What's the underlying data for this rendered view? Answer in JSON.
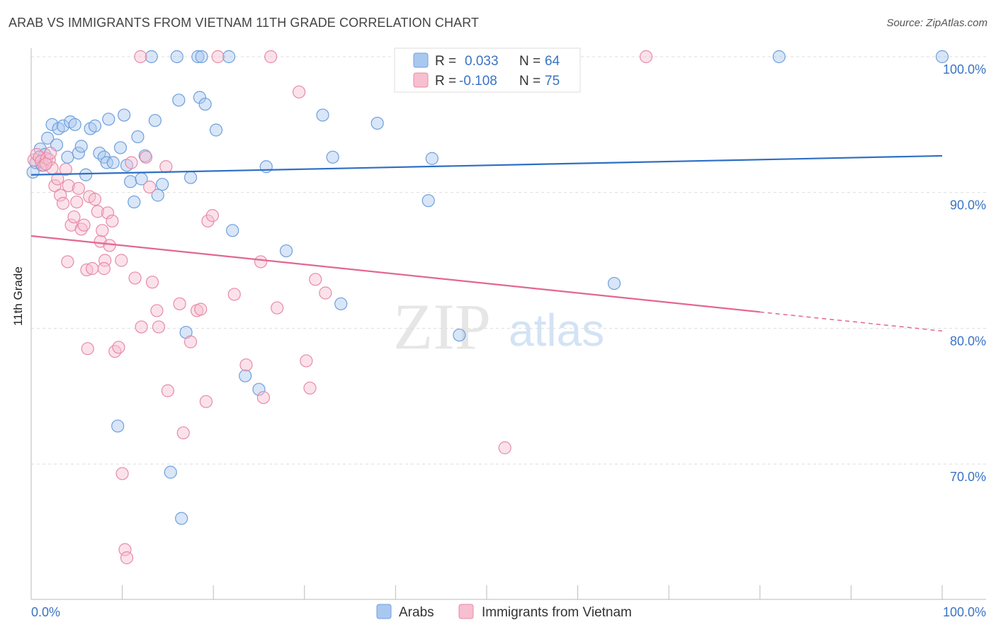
{
  "header": {
    "title": "ARAB VS IMMIGRANTS FROM VIETNAM 11TH GRADE CORRELATION CHART",
    "source": "Source: ZipAtlas.com"
  },
  "watermark": {
    "zip": "ZIP",
    "atlas": "atlas"
  },
  "legend_top": [
    {
      "r_label": "R =",
      "r_value": "0.033",
      "n_label": "N =",
      "n_value": "64"
    },
    {
      "r_label": "R =",
      "r_value": "-0.108",
      "n_label": "N =",
      "n_value": "75"
    }
  ],
  "legend_bottom": [
    "Arabs",
    "Immigrants from Vietnam"
  ],
  "colors": {
    "arab_fill": "#a9c8f0",
    "arab_stroke": "#6e9fdc",
    "arab_line": "#2e6fc4",
    "viet_fill": "#f7bfd0",
    "viet_stroke": "#e88aa8",
    "viet_line": "#e36694",
    "axis_text_blue": "#3a73c4",
    "grid": "#dddddd"
  },
  "chart_data": {
    "type": "scatter",
    "title": "ARAB VS IMMIGRANTS FROM VIETNAM 11TH GRADE CORRELATION CHART",
    "xlabel": "",
    "ylabel": "11th Grade",
    "xlim": [
      0,
      100
    ],
    "ylim": [
      61.5,
      101.5
    ],
    "x_tick_labels": [
      "0.0%",
      "100.0%"
    ],
    "y_ticks": [
      70,
      80,
      90,
      100
    ],
    "y_tick_labels": [
      "70.0%",
      "80.0%",
      "90.0%",
      "100.0%"
    ],
    "grid": true,
    "legend_position": "top-center",
    "series": [
      {
        "name": "Arabs",
        "R": 0.033,
        "N": 64,
        "trend": {
          "x": [
            0,
            100
          ],
          "y": [
            91.3,
            92.7
          ],
          "dashed_from": null
        },
        "points": [
          [
            0.2,
            91.5
          ],
          [
            0.5,
            92.2
          ],
          [
            1.0,
            93.2
          ],
          [
            1.5,
            92.8
          ],
          [
            1.8,
            94.0
          ],
          [
            2.3,
            95.0
          ],
          [
            2.8,
            93.5
          ],
          [
            3.0,
            94.7
          ],
          [
            3.5,
            94.9
          ],
          [
            4.0,
            92.6
          ],
          [
            4.3,
            95.2
          ],
          [
            4.8,
            95.0
          ],
          [
            5.2,
            92.9
          ],
          [
            5.5,
            93.4
          ],
          [
            6.0,
            91.3
          ],
          [
            6.5,
            94.7
          ],
          [
            7.0,
            94.9
          ],
          [
            7.5,
            92.9
          ],
          [
            8.0,
            92.6
          ],
          [
            8.3,
            92.2
          ],
          [
            8.5,
            95.4
          ],
          [
            9.0,
            92.2
          ],
          [
            9.8,
            93.3
          ],
          [
            10.2,
            95.7
          ],
          [
            10.5,
            92.0
          ],
          [
            10.9,
            90.8
          ],
          [
            11.3,
            89.3
          ],
          [
            11.7,
            94.1
          ],
          [
            12.1,
            91.0
          ],
          [
            12.5,
            92.7
          ],
          [
            13.2,
            100.0
          ],
          [
            13.6,
            95.3
          ],
          [
            13.9,
            89.8
          ],
          [
            14.4,
            90.6
          ],
          [
            16.0,
            100.0
          ],
          [
            16.2,
            96.8
          ],
          [
            17.0,
            79.7
          ],
          [
            17.5,
            91.1
          ],
          [
            18.3,
            100.0
          ],
          [
            18.5,
            97.0
          ],
          [
            18.7,
            100.0
          ],
          [
            19.1,
            96.5
          ],
          [
            20.3,
            94.6
          ],
          [
            21.7,
            100.0
          ],
          [
            22.1,
            87.2
          ],
          [
            23.5,
            76.5
          ],
          [
            25.8,
            91.9
          ],
          [
            28.0,
            85.7
          ],
          [
            32.0,
            95.7
          ],
          [
            33.1,
            92.6
          ],
          [
            34.0,
            81.8
          ],
          [
            38.0,
            95.1
          ],
          [
            43.6,
            89.4
          ],
          [
            44.0,
            92.5
          ],
          [
            47.0,
            79.5
          ],
          [
            59.5,
            100.0
          ],
          [
            64.0,
            83.3
          ],
          [
            82.1,
            100.0
          ],
          [
            100.0,
            100.0
          ],
          [
            25.0,
            75.5
          ],
          [
            9.5,
            72.8
          ],
          [
            15.3,
            69.4
          ],
          [
            16.5,
            66.0
          ],
          [
            1.2,
            92.0
          ]
        ]
      },
      {
        "name": "Immigrants from Vietnam",
        "R": -0.108,
        "N": 75,
        "trend": {
          "x": [
            0,
            100
          ],
          "y": [
            86.8,
            79.8
          ],
          "dashed_from": 80
        },
        "points": [
          [
            0.3,
            92.4
          ],
          [
            0.6,
            92.8
          ],
          [
            0.9,
            92.6
          ],
          [
            1.1,
            92.3
          ],
          [
            1.4,
            92.0
          ],
          [
            1.7,
            92.5
          ],
          [
            2.0,
            92.4
          ],
          [
            2.3,
            91.8
          ],
          [
            2.6,
            90.5
          ],
          [
            2.9,
            91.0
          ],
          [
            3.2,
            89.8
          ],
          [
            3.5,
            89.2
          ],
          [
            3.8,
            91.7
          ],
          [
            4.1,
            90.5
          ],
          [
            4.4,
            87.6
          ],
          [
            4.7,
            88.2
          ],
          [
            5.0,
            89.3
          ],
          [
            5.2,
            90.3
          ],
          [
            5.5,
            87.3
          ],
          [
            5.8,
            87.6
          ],
          [
            6.1,
            84.3
          ],
          [
            6.4,
            89.7
          ],
          [
            6.7,
            84.4
          ],
          [
            7.0,
            89.5
          ],
          [
            7.3,
            88.6
          ],
          [
            7.6,
            86.4
          ],
          [
            7.8,
            87.2
          ],
          [
            8.1,
            85.0
          ],
          [
            8.4,
            88.5
          ],
          [
            8.6,
            86.1
          ],
          [
            8.9,
            87.9
          ],
          [
            9.2,
            78.3
          ],
          [
            9.6,
            78.6
          ],
          [
            9.9,
            85.0
          ],
          [
            10.3,
            63.7
          ],
          [
            10.5,
            63.1
          ],
          [
            11.0,
            92.2
          ],
          [
            11.4,
            83.7
          ],
          [
            12.1,
            80.1
          ],
          [
            12.6,
            92.6
          ],
          [
            13.0,
            90.4
          ],
          [
            13.3,
            83.4
          ],
          [
            13.8,
            81.3
          ],
          [
            14.0,
            80.1
          ],
          [
            14.8,
            91.9
          ],
          [
            16.3,
            81.8
          ],
          [
            16.7,
            72.3
          ],
          [
            17.5,
            79.0
          ],
          [
            18.2,
            81.3
          ],
          [
            18.6,
            81.4
          ],
          [
            19.2,
            74.6
          ],
          [
            19.4,
            87.9
          ],
          [
            19.9,
            88.3
          ],
          [
            20.5,
            100.0
          ],
          [
            22.3,
            82.5
          ],
          [
            23.6,
            77.3
          ],
          [
            25.2,
            84.9
          ],
          [
            25.5,
            74.9
          ],
          [
            26.3,
            100.0
          ],
          [
            27.0,
            81.5
          ],
          [
            29.4,
            97.4
          ],
          [
            30.2,
            77.6
          ],
          [
            30.6,
            75.6
          ],
          [
            31.2,
            83.6
          ],
          [
            32.3,
            82.6
          ],
          [
            52.0,
            71.2
          ],
          [
            67.5,
            100.0
          ],
          [
            1.6,
            92.1
          ],
          [
            12.0,
            100.0
          ],
          [
            10.0,
            69.3
          ],
          [
            6.2,
            78.5
          ],
          [
            15.0,
            75.4
          ],
          [
            2.1,
            92.9
          ],
          [
            8.0,
            84.4
          ],
          [
            4.0,
            84.9
          ]
        ]
      }
    ]
  }
}
